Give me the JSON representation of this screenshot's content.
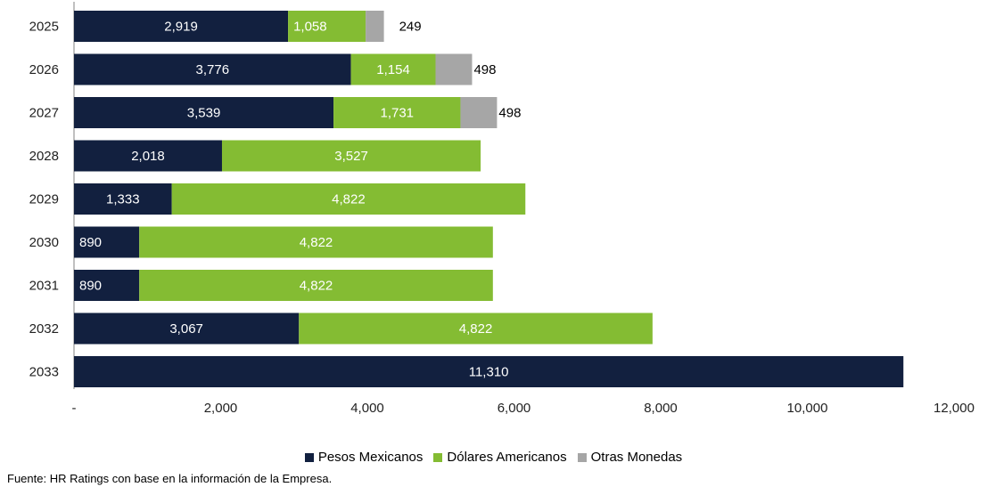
{
  "chart_data": {
    "type": "bar",
    "orientation": "horizontal",
    "stacked": true,
    "categories": [
      "2025",
      "2026",
      "2027",
      "2028",
      "2029",
      "2030",
      "2031",
      "2032",
      "2033"
    ],
    "series": [
      {
        "name": "Pesos Mexicanos",
        "color": "#12203f",
        "values": [
          2919,
          3776,
          3539,
          2018,
          1333,
          890,
          890,
          3067,
          11310
        ],
        "labels": [
          "2,919",
          "3,776",
          "3,539",
          "2,018",
          "1,333",
          "890",
          "890",
          "3,067",
          "11,310"
        ]
      },
      {
        "name": "Dólares Americanos",
        "color": "#84bc33",
        "values": [
          1058,
          1154,
          1731,
          3527,
          4822,
          4822,
          4822,
          4822,
          0
        ],
        "labels": [
          "1,058",
          "1,154",
          "1,731",
          "3,527",
          "4,822",
          "4,822",
          "4,822",
          "4,822",
          ""
        ]
      },
      {
        "name": "Otras Monedas",
        "color": "#a6a6a6",
        "values": [
          249,
          498,
          498,
          0,
          0,
          0,
          0,
          0,
          0
        ],
        "labels": [
          "249",
          "498",
          "498",
          "",
          "",
          "",
          "",
          "",
          ""
        ]
      }
    ],
    "x_ticks": [
      "-",
      "2,000",
      "4,000",
      "6,000",
      "8,000",
      "10,000",
      "12,000"
    ],
    "xlim": [
      0,
      12000
    ],
    "grid": false,
    "legend_position": "bottom"
  },
  "source_note": "Fuente: HR Ratings con base en la información de la Empresa."
}
